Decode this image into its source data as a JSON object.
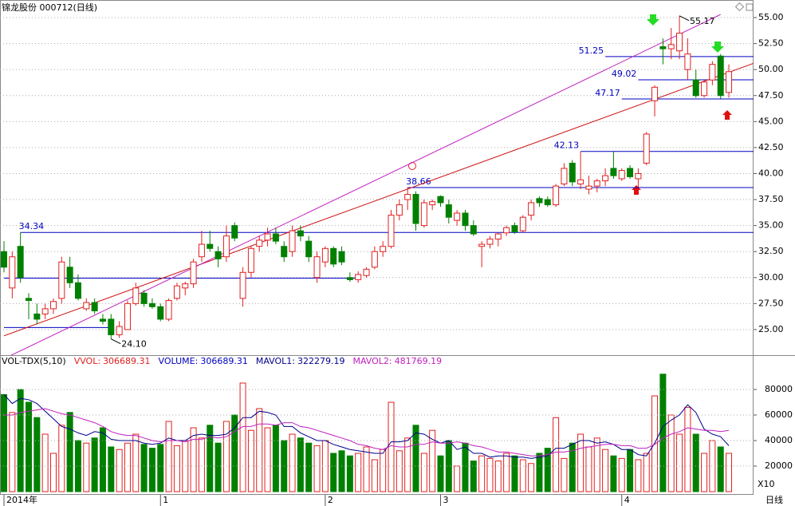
{
  "chart_data": {
    "type": "candlestick",
    "title": "锦龙股份 000712(日线)",
    "period_label": "日线",
    "up_color": "#e02020",
    "down_color": "#008000",
    "ylim": [
      22.54,
      56.69
    ],
    "yticks": [
      {
        "value": 25,
        "label": "25.00"
      },
      {
        "value": 27.5,
        "label": "27.50"
      },
      {
        "value": 30,
        "label": "30.00"
      },
      {
        "value": 32.5,
        "label": "32.50"
      },
      {
        "value": 35,
        "label": "35.00"
      },
      {
        "value": 37.5,
        "label": "37.50"
      },
      {
        "value": 40,
        "label": "40.00"
      },
      {
        "value": 42.5,
        "label": "42.50"
      },
      {
        "value": 45,
        "label": "45.00"
      },
      {
        "value": 47.5,
        "label": "47.50"
      },
      {
        "value": 50,
        "label": "50.00"
      },
      {
        "value": 52.5,
        "label": "52.50"
      },
      {
        "value": 55,
        "label": "55.00"
      }
    ],
    "xticks": [
      {
        "value": 0,
        "label": "2014年"
      },
      {
        "value": 19,
        "label": "1"
      },
      {
        "value": 39,
        "label": "2"
      },
      {
        "value": 53,
        "label": "3"
      },
      {
        "value": 75,
        "label": "4"
      }
    ],
    "candles": [
      [
        32.5,
        33.5,
        30.5,
        31
      ],
      [
        29,
        32.5,
        28,
        32
      ],
      [
        33,
        34.34,
        29.5,
        30
      ],
      [
        28,
        28.5,
        26,
        27.8
      ],
      [
        26.5,
        27.5,
        25.5,
        26
      ],
      [
        26.5,
        27.5,
        26,
        27
      ],
      [
        27,
        28,
        26.5,
        27.7
      ],
      [
        28,
        32,
        27.5,
        31.5
      ],
      [
        31,
        32,
        29,
        29.5
      ],
      [
        29.5,
        30.3,
        27.8,
        28
      ],
      [
        27,
        28,
        26.8,
        27.6
      ],
      [
        27.6,
        28,
        26.5,
        26.8
      ],
      [
        26,
        26.5,
        25.5,
        25.8
      ],
      [
        26,
        26.5,
        24.1,
        24.5
      ],
      [
        24.5,
        25.8,
        24.2,
        25.3
      ],
      [
        25,
        27.8,
        25,
        27.5
      ],
      [
        27.5,
        29.5,
        27.3,
        29
      ],
      [
        28.5,
        28.8,
        27.2,
        27.5
      ],
      [
        27.5,
        28,
        27,
        27.2
      ],
      [
        27.2,
        27.5,
        25.8,
        26
      ],
      [
        26,
        28,
        25.8,
        27.8
      ],
      [
        28,
        29.5,
        27.8,
        29.2
      ],
      [
        29,
        29.6,
        28.3,
        29.4
      ],
      [
        29.4,
        31.8,
        29,
        31.5
      ],
      [
        32,
        34.5,
        31.5,
        33.2
      ],
      [
        33.2,
        34.5,
        32.5,
        32.8
      ],
      [
        32.5,
        33,
        31,
        31.8
      ],
      [
        32,
        35,
        31.5,
        34
      ],
      [
        35,
        35.3,
        33.5,
        33.8
      ],
      [
        28,
        31,
        27.2,
        30.5
      ],
      [
        30.5,
        33,
        30,
        32.8
      ],
      [
        33,
        34,
        32.5,
        33.6
      ],
      [
        33.6,
        34.8,
        33,
        34.2
      ],
      [
        34.2,
        34.8,
        33.2,
        33.5
      ],
      [
        33,
        33.5,
        31.5,
        32
      ],
      [
        32.5,
        35,
        32,
        34.5
      ],
      [
        34.5,
        35,
        33.5,
        34
      ],
      [
        33.5,
        34,
        31.5,
        32
      ],
      [
        30,
        32.5,
        29.5,
        32
      ],
      [
        31.5,
        33,
        31,
        32.8
      ],
      [
        32.8,
        33,
        31,
        31.3
      ],
      [
        32.5,
        33,
        31.2,
        31.5
      ],
      [
        30,
        30.5,
        29.6,
        29.8
      ],
      [
        29.8,
        30.6,
        29.5,
        30.3
      ],
      [
        30.2,
        31,
        30,
        30.8
      ],
      [
        31,
        33,
        30.8,
        32.5
      ],
      [
        32.5,
        33.5,
        32,
        33
      ],
      [
        33,
        36.5,
        32.8,
        36
      ],
      [
        36,
        37.5,
        35.5,
        37
      ],
      [
        37.5,
        38.7,
        36.5,
        38
      ],
      [
        38,
        38.3,
        34.5,
        35.2
      ],
      [
        35,
        37.5,
        34.8,
        37.2
      ],
      [
        37,
        37.5,
        36.5,
        37.3
      ],
      [
        37.8,
        37.9,
        36.8,
        37.2
      ],
      [
        37,
        37.5,
        35.2,
        35.8
      ],
      [
        35.5,
        36.5,
        35,
        36.2
      ],
      [
        36.2,
        36.5,
        34.5,
        35
      ],
      [
        35,
        35.5,
        34,
        34.2
      ],
      [
        33,
        33.5,
        31,
        33.2
      ],
      [
        33.2,
        34,
        32.8,
        33.7
      ],
      [
        33.7,
        34.3,
        33,
        34.2
      ],
      [
        34.3,
        35,
        34,
        34.8
      ],
      [
        35,
        35.3,
        34.2,
        34.4
      ],
      [
        34.5,
        36,
        34.3,
        35.8
      ],
      [
        36,
        37.5,
        35.5,
        37.2
      ],
      [
        37.6,
        37.8,
        36.8,
        37.2
      ],
      [
        37.5,
        37.8,
        36.8,
        37
      ],
      [
        37,
        39,
        36.8,
        38.8
      ],
      [
        39,
        41,
        38.8,
        40.5
      ],
      [
        41,
        41.3,
        38.8,
        39.2
      ],
      [
        39,
        42.13,
        38.5,
        39.4
      ],
      [
        38.5,
        39.8,
        38,
        38.8
      ],
      [
        38.8,
        39.5,
        38.2,
        39.3
      ],
      [
        39.3,
        40.5,
        38.8,
        39.8
      ],
      [
        40.5,
        42.1,
        39.5,
        39.8
      ],
      [
        39.5,
        40.5,
        39.3,
        40.3
      ],
      [
        40.5,
        40.8,
        39.5,
        39.7
      ],
      [
        39.5,
        40.5,
        38.7,
        40
      ],
      [
        41,
        44,
        40.8,
        43.8
      ],
      [
        47,
        48.5,
        45.5,
        48.3
      ],
      [
        52.2,
        53,
        50.5,
        52
      ],
      [
        52,
        54,
        51,
        52.4
      ],
      [
        51.8,
        55.17,
        51,
        53.5
      ],
      [
        50,
        53,
        49,
        51.5
      ],
      [
        49,
        50,
        47.3,
        47.5
      ],
      [
        47.5,
        49,
        47.3,
        48.8
      ],
      [
        49,
        50.8,
        48.5,
        50.5
      ],
      [
        51.3,
        51.5,
        47.2,
        47.5
      ],
      [
        47.8,
        50.5,
        47.3,
        49.8
      ]
    ],
    "levels": [
      {
        "value": 34.34,
        "label": "34.34",
        "from": 2,
        "to": 91
      },
      {
        "value": 38.66,
        "label": "38.66",
        "from": 49,
        "to": 91
      },
      {
        "value": 42.13,
        "label": "42.13",
        "from": 70,
        "to": 91
      },
      {
        "value": 47.17,
        "label": "47.17",
        "from": 75,
        "to": 91
      },
      {
        "value": 49.02,
        "label": "49.02",
        "from": 77,
        "to": 91
      },
      {
        "value": 51.25,
        "label": "51.25",
        "from": 73,
        "to": 91
      },
      {
        "value": 29.95,
        "from": 0,
        "to": 43
      },
      {
        "value": 25.2,
        "from": 0,
        "to": 13
      }
    ],
    "trendlines": [
      {
        "color": "#d01818",
        "from": [
          0,
          24.4
        ],
        "to": [
          91,
          50.6
        ]
      },
      {
        "color": "#c020c0",
        "from": [
          0,
          22.2
        ],
        "to": [
          87,
          55.3
        ]
      }
    ],
    "annotations": [
      {
        "index": 13,
        "value": 24.1,
        "label": "24.10"
      },
      {
        "index": 82,
        "value": 55.17,
        "label": "55.17"
      }
    ],
    "volume": {
      "ylim": [
        0,
        97500
      ],
      "yticks": [
        20000,
        40000,
        60000,
        80000
      ],
      "unit_label": "X10",
      "legend": [
        {
          "label": "VOL-TDX(5,10)",
          "color": "#000000"
        },
        {
          "label": "VVOL:",
          "value": 306689.31,
          "color": "#e02020"
        },
        {
          "label": "VOLUME:",
          "value": 306689.31,
          "color": "#0000c0"
        },
        {
          "label": "MAVOL1:",
          "value": 322279.19,
          "color": "#00008b"
        },
        {
          "label": "MAVOL2:",
          "value": 481769.19,
          "color": "#c020c0"
        }
      ],
      "values": [
        76000,
        62000,
        80000,
        70000,
        58000,
        45000,
        30000,
        52000,
        62000,
        40000,
        38000,
        42000,
        50000,
        35000,
        33000,
        38000,
        45000,
        37000,
        34000,
        37000,
        55000,
        36000,
        40000,
        50000,
        42000,
        52000,
        38000,
        55000,
        60000,
        85000,
        48000,
        65000,
        50000,
        52000,
        40000,
        45000,
        42000,
        38000,
        36000,
        40000,
        30000,
        32000,
        28000,
        30000,
        35000,
        25000,
        33000,
        70000,
        32000,
        42000,
        52000,
        30000,
        48000,
        28000,
        40000,
        20000,
        38000,
        24000,
        28000,
        26000,
        24000,
        30000,
        28000,
        25000,
        22000,
        30000,
        34000,
        58000,
        26000,
        38000,
        45000,
        35000,
        42000,
        33000,
        28000,
        26000,
        33000,
        25000,
        30000,
        75000,
        92000,
        60000,
        45000,
        66000,
        45000,
        30000,
        40000,
        35000,
        30000
      ],
      "mavol1": [
        76000,
        69000,
        73000,
        72000,
        69000,
        63000,
        57000,
        51000,
        49000,
        46000,
        44000,
        47000,
        46000,
        41000,
        40000,
        40000,
        40000,
        38000,
        37000,
        38000,
        42000,
        40000,
        40000,
        44000,
        45000,
        44000,
        44000,
        45000,
        50000,
        58000,
        58000,
        63000,
        62000,
        60000,
        51000,
        51000,
        46000,
        43000,
        40000,
        40000,
        37000,
        35000,
        33000,
        32000,
        31000,
        30000,
        30000,
        39000,
        39000,
        40000,
        46000,
        45000,
        41000,
        38000,
        40000,
        33000,
        35000,
        30000,
        30000,
        27000,
        28000,
        28000,
        27000,
        27000,
        26000,
        27000,
        28000,
        34000,
        34000,
        37000,
        40000,
        40000,
        38000,
        39000,
        37000,
        33000,
        33000,
        29000,
        28000,
        38000,
        51000,
        56000,
        60000,
        68000,
        62000,
        49000,
        45000,
        43000,
        36000
      ],
      "mavol2": [
        60000,
        60000,
        62000,
        63000,
        64000,
        65000,
        63000,
        61000,
        60000,
        58000,
        56000,
        54000,
        51000,
        47000,
        45000,
        44000,
        44000,
        42000,
        40000,
        39000,
        40000,
        40000,
        39000,
        41000,
        41000,
        43000,
        42000,
        43000,
        47000,
        51000,
        51000,
        53000,
        53000,
        52000,
        54000,
        54000,
        51000,
        50000,
        48000,
        46000,
        44000,
        42000,
        40000,
        37000,
        36000,
        34000,
        33000,
        36000,
        35000,
        35000,
        37000,
        37000,
        39000,
        38000,
        38000,
        39000,
        38000,
        36000,
        35000,
        33000,
        31000,
        31000,
        30000,
        29000,
        28000,
        28000,
        29000,
        31000,
        31000,
        32000,
        34000,
        35000,
        36000,
        37000,
        37000,
        36000,
        36000,
        34000,
        34000,
        37000,
        42000,
        45000,
        47000,
        50000,
        49000,
        48000,
        48000,
        47000,
        48000
      ]
    }
  }
}
